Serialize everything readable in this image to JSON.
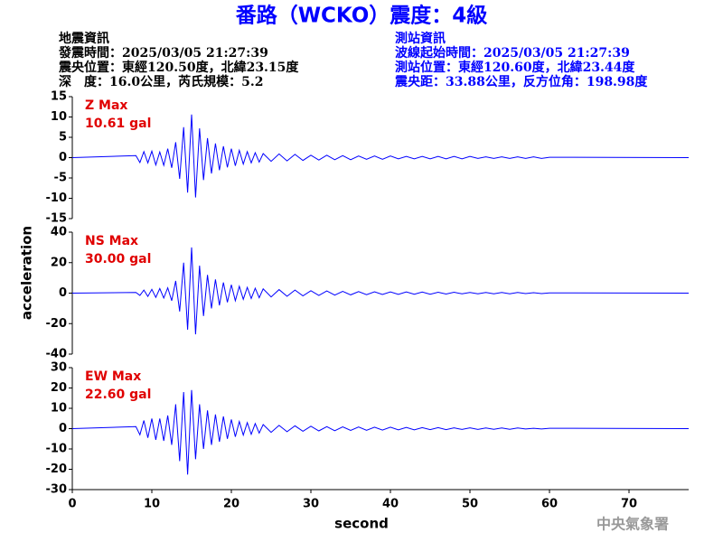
{
  "chart_data": {
    "type": "line",
    "title": "番路（WCKO）震度：4級",
    "info_left": [
      "地震資訊",
      "發震時間：2025/03/05 21:27:39",
      "震央位置：東經120.50度，北緯23.15度",
      "深　度：16.0公里，芮氏規模：5.2"
    ],
    "info_right": [
      "測站資訊",
      "波線起始時間：2025/03/05 21:27:39",
      "測站位置：東經120.60度，北緯23.44度",
      "震央距：33.88公里，反方位角：198.98度"
    ],
    "ylabel": "acceleration",
    "xlabel": "second",
    "footer": "中央氣象署",
    "xlim": [
      0,
      77.5
    ],
    "xticks": [
      0,
      10,
      20,
      30,
      40,
      50,
      60,
      70
    ],
    "x": [
      0,
      8,
      8.5,
      9,
      9.5,
      10,
      10.5,
      11,
      11.5,
      12,
      12.5,
      13,
      13.5,
      14,
      14.5,
      15,
      15.5,
      16,
      16.5,
      17,
      17.5,
      18,
      18.5,
      19,
      19.5,
      20,
      20.5,
      21,
      21.5,
      22,
      22.5,
      23,
      23.5,
      24,
      25,
      26,
      27,
      28,
      29,
      30,
      31,
      32,
      33,
      34,
      35,
      36,
      37,
      38,
      39,
      40,
      41,
      42,
      43,
      44,
      45,
      46,
      47,
      48,
      49,
      50,
      51,
      52,
      53,
      54,
      55,
      56,
      57,
      58,
      59,
      60,
      77.5
    ],
    "series": [
      {
        "name": "Z Max",
        "max_label": "10.61 gal",
        "color": "#0000ff",
        "ylim": [
          -15,
          15
        ],
        "yticks": [
          -15,
          -10,
          -5,
          0,
          5,
          10,
          15
        ],
        "values": [
          0,
          0.5,
          -1.2,
          1.5,
          -1.3,
          1.6,
          -1.8,
          1.4,
          -1.9,
          2.2,
          -2.5,
          3.8,
          -5.2,
          7.5,
          -8.6,
          10.61,
          -9.8,
          7.2,
          -5.5,
          4.8,
          -3.9,
          3.5,
          -3.1,
          2.8,
          -2.4,
          2.2,
          -2.0,
          1.8,
          -1.6,
          1.5,
          -1.3,
          1.2,
          -1.1,
          1.0,
          -0.9,
          0.9,
          -0.8,
          0.8,
          -0.7,
          0.6,
          -0.6,
          0.6,
          -0.5,
          0.5,
          -0.5,
          0.4,
          -0.4,
          0.4,
          -0.4,
          0.4,
          -0.3,
          0.3,
          -0.3,
          0.3,
          -0.3,
          0.3,
          -0.3,
          0.3,
          -0.3,
          0.3,
          -0.2,
          0.2,
          -0.2,
          0.2,
          -0.2,
          0.2,
          -0.2,
          0.2,
          -0.2,
          0.1,
          0
        ]
      },
      {
        "name": "NS Max",
        "max_label": "30.00 gal",
        "color": "#0000ff",
        "ylim": [
          -40,
          40
        ],
        "yticks": [
          -40,
          -20,
          0,
          20,
          40
        ],
        "values": [
          0,
          0.5,
          -1.5,
          2.0,
          -2.2,
          2.5,
          -2.8,
          3.0,
          -3.2,
          3.5,
          -5.0,
          8.0,
          -12.0,
          20.0,
          -24.0,
          30.0,
          -27.0,
          18.0,
          -15.0,
          12.0,
          -10.0,
          9.0,
          -8.0,
          7.0,
          -6.0,
          5.5,
          -5.0,
          4.5,
          -4.0,
          3.8,
          -3.5,
          3.2,
          -3.0,
          2.8,
          -2.5,
          2.3,
          -2.1,
          2.0,
          -1.8,
          1.6,
          -1.5,
          1.4,
          -1.3,
          1.2,
          -1.1,
          1.0,
          -1.0,
          0.9,
          -0.9,
          0.8,
          -0.8,
          0.8,
          -0.7,
          0.7,
          -0.7,
          0.6,
          -0.6,
          0.6,
          -0.5,
          0.5,
          -0.5,
          0.5,
          -0.4,
          0.4,
          -0.4,
          0.4,
          -0.3,
          0.3,
          -0.3,
          0.2,
          0
        ]
      },
      {
        "name": "EW Max",
        "max_label": "22.60 gal",
        "color": "#0000ff",
        "ylim": [
          -30,
          30
        ],
        "yticks": [
          -30,
          -20,
          -10,
          0,
          10,
          20,
          30
        ],
        "values": [
          0,
          1.0,
          -3.0,
          4.0,
          -4.5,
          5.0,
          -5.5,
          5.0,
          -6.0,
          6.5,
          -8.0,
          12.0,
          -16.0,
          18.0,
          -22.6,
          19.0,
          -15.0,
          12.0,
          -10.0,
          9.0,
          -8.0,
          7.0,
          -6.5,
          6.0,
          -5.0,
          4.5,
          -4.0,
          3.5,
          -3.2,
          3.0,
          -2.8,
          2.5,
          -2.2,
          2.0,
          -1.8,
          1.6,
          -1.5,
          1.4,
          -1.3,
          1.2,
          -1.1,
          1.0,
          -1.0,
          0.9,
          -0.9,
          0.8,
          -0.8,
          0.7,
          -0.7,
          0.7,
          -0.6,
          0.6,
          -0.6,
          0.5,
          -0.5,
          0.5,
          -0.5,
          0.4,
          -0.4,
          0.4,
          -0.4,
          0.3,
          -0.3,
          0.3,
          -0.3,
          0.3,
          -0.2,
          0.2,
          -0.2,
          0.2,
          0
        ]
      }
    ]
  }
}
